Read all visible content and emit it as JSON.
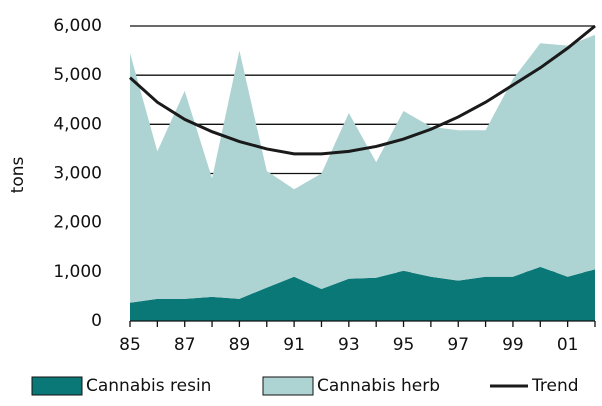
{
  "chart_data": {
    "type": "area",
    "y_label": "tons",
    "categories": [
      "85",
      null,
      "87",
      null,
      "89",
      null,
      "91",
      null,
      "93",
      null,
      "95",
      null,
      "97",
      null,
      "99",
      null,
      "01",
      null
    ],
    "series": [
      {
        "name": "Cannabis resin",
        "color": "#0b7878",
        "values": [
          370,
          450,
          450,
          490,
          450,
          680,
          900,
          650,
          860,
          880,
          1020,
          900,
          820,
          900,
          900,
          1100,
          900,
          1050
        ]
      },
      {
        "name": "Cannabis herb",
        "color": "#aed3d3",
        "values": [
          5080,
          3000,
          4230,
          2410,
          5050,
          2370,
          1780,
          2350,
          3370,
          2350,
          3250,
          3050,
          3060,
          2980,
          4020,
          4550,
          4700,
          4770
        ]
      },
      {
        "name": "Trend",
        "color": "#1a1a1a",
        "type": "line",
        "values": [
          4950,
          4450,
          4100,
          3850,
          3650,
          3500,
          3400,
          3400,
          3450,
          3550,
          3700,
          3900,
          4150,
          4450,
          4800,
          5150,
          5550,
          6000
        ]
      }
    ],
    "ylim": [
      0,
      6000
    ],
    "yticks": [
      0,
      {
        "value": 1000,
        "label": "1,000"
      },
      {
        "value": 2000,
        "label": "2,000"
      },
      {
        "value": 3000,
        "label": "3,000"
      },
      {
        "value": 4000,
        "label": "4,000"
      },
      {
        "value": 5000,
        "label": "5,000"
      },
      {
        "value": 6000,
        "label": "6,000"
      }
    ],
    "grid": true
  }
}
